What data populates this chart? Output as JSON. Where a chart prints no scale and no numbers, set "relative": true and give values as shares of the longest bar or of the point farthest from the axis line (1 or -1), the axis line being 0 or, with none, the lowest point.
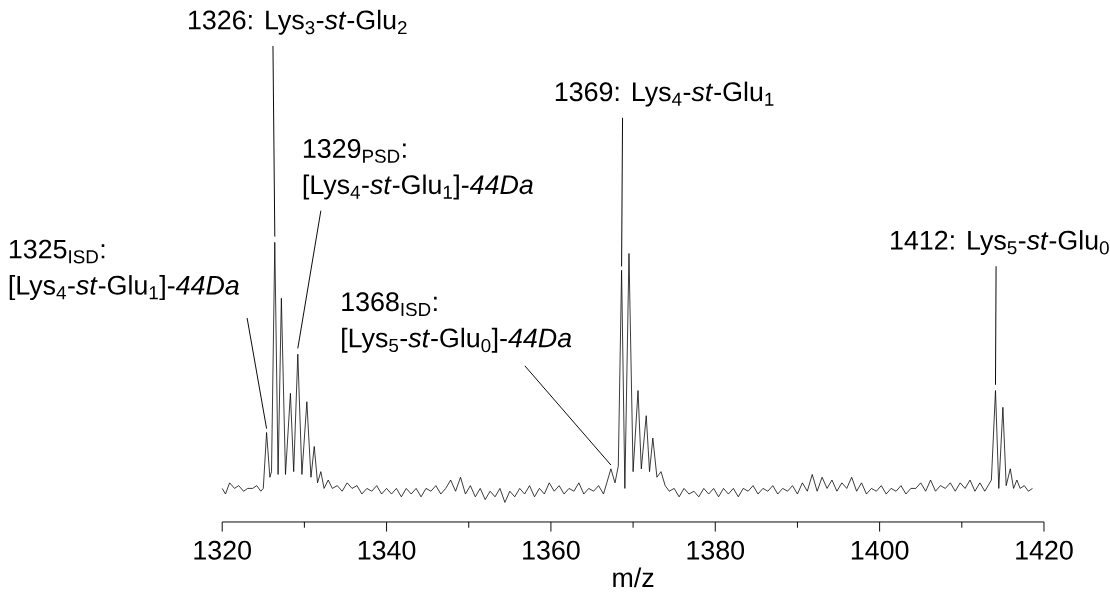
{
  "chart_data": {
    "type": "line",
    "relative": true,
    "tick_labels": "x",
    "xlabel": "m/z",
    "xlim": [
      1320,
      1420
    ],
    "xticks": [
      1320,
      1340,
      1360,
      1380,
      1400,
      1420
    ],
    "color": "#000000",
    "x": [
      1320.0,
      1320.4,
      1320.9,
      1321.5,
      1322.0,
      1322.6,
      1323.1,
      1323.7,
      1324.2,
      1324.7,
      1325.0,
      1325.4,
      1325.8,
      1326.0,
      1326.4,
      1326.8,
      1327.2,
      1327.7,
      1328.3,
      1328.7,
      1329.2,
      1329.7,
      1330.3,
      1330.8,
      1331.2,
      1331.6,
      1332.0,
      1332.4,
      1332.9,
      1333.4,
      1334.0,
      1334.6,
      1335.2,
      1335.8,
      1336.4,
      1337.0,
      1337.6,
      1338.2,
      1338.8,
      1339.4,
      1340.0,
      1340.6,
      1341.2,
      1341.8,
      1342.4,
      1343.0,
      1343.6,
      1344.2,
      1344.8,
      1345.4,
      1346.0,
      1346.6,
      1347.2,
      1347.8,
      1348.4,
      1349.0,
      1349.6,
      1350.2,
      1350.8,
      1351.4,
      1352.0,
      1352.6,
      1353.2,
      1353.8,
      1354.4,
      1355.0,
      1355.6,
      1356.2,
      1356.8,
      1357.4,
      1358.0,
      1358.6,
      1359.2,
      1359.8,
      1360.4,
      1361.0,
      1361.6,
      1362.2,
      1362.8,
      1363.4,
      1364.0,
      1364.6,
      1365.2,
      1365.8,
      1366.4,
      1366.8,
      1367.3,
      1367.8,
      1368.2,
      1368.6,
      1369.0,
      1369.5,
      1370.0,
      1370.6,
      1371.0,
      1371.6,
      1372.0,
      1372.4,
      1372.9,
      1373.4,
      1373.9,
      1374.4,
      1375.0,
      1375.6,
      1376.2,
      1376.8,
      1377.4,
      1378.0,
      1378.6,
      1379.2,
      1379.8,
      1380.4,
      1381.0,
      1381.6,
      1382.2,
      1382.8,
      1383.4,
      1384.0,
      1384.6,
      1385.2,
      1385.8,
      1386.4,
      1387.0,
      1387.6,
      1388.2,
      1388.8,
      1389.4,
      1390.0,
      1390.6,
      1391.2,
      1391.8,
      1392.4,
      1393.0,
      1393.6,
      1394.2,
      1394.8,
      1395.4,
      1396.0,
      1396.6,
      1397.2,
      1397.8,
      1398.4,
      1399.0,
      1399.6,
      1400.2,
      1400.8,
      1401.4,
      1402.0,
      1402.6,
      1403.2,
      1403.8,
      1404.4,
      1405.0,
      1405.6,
      1406.2,
      1406.8,
      1407.4,
      1408.0,
      1408.6,
      1409.2,
      1409.8,
      1410.4,
      1411.0,
      1411.6,
      1412.2,
      1412.8,
      1413.2,
      1413.6,
      1414.1,
      1414.5,
      1415.0,
      1415.4,
      1415.9,
      1416.3,
      1416.7,
      1417.1,
      1417.6,
      1418.1,
      1418.6
    ],
    "values": [
      0.12,
      0.1,
      0.14,
      0.12,
      0.13,
      0.11,
      0.12,
      0.12,
      0.13,
      0.11,
      0.12,
      0.32,
      0.16,
      0.18,
      1.0,
      0.17,
      0.8,
      0.17,
      0.46,
      0.18,
      0.6,
      0.17,
      0.43,
      0.16,
      0.27,
      0.14,
      0.18,
      0.12,
      0.15,
      0.12,
      0.13,
      0.11,
      0.14,
      0.12,
      0.13,
      0.1,
      0.12,
      0.11,
      0.13,
      0.1,
      0.12,
      0.1,
      0.12,
      0.09,
      0.12,
      0.1,
      0.12,
      0.09,
      0.12,
      0.11,
      0.13,
      0.1,
      0.12,
      0.15,
      0.11,
      0.16,
      0.1,
      0.13,
      0.09,
      0.12,
      0.08,
      0.11,
      0.09,
      0.12,
      0.07,
      0.11,
      0.09,
      0.12,
      0.1,
      0.13,
      0.09,
      0.12,
      0.1,
      0.14,
      0.11,
      0.13,
      0.1,
      0.12,
      0.11,
      0.14,
      0.1,
      0.12,
      0.11,
      0.13,
      0.1,
      0.14,
      0.19,
      0.14,
      0.2,
      0.9,
      0.12,
      0.96,
      0.18,
      0.47,
      0.19,
      0.38,
      0.18,
      0.3,
      0.16,
      0.18,
      0.13,
      0.11,
      0.12,
      0.09,
      0.12,
      0.1,
      0.11,
      0.09,
      0.12,
      0.1,
      0.12,
      0.09,
      0.12,
      0.1,
      0.12,
      0.09,
      0.12,
      0.11,
      0.13,
      0.1,
      0.12,
      0.11,
      0.13,
      0.1,
      0.12,
      0.11,
      0.13,
      0.1,
      0.14,
      0.11,
      0.17,
      0.11,
      0.16,
      0.12,
      0.15,
      0.11,
      0.14,
      0.12,
      0.16,
      0.11,
      0.14,
      0.1,
      0.12,
      0.11,
      0.13,
      0.1,
      0.12,
      0.11,
      0.13,
      0.1,
      0.12,
      0.12,
      0.14,
      0.11,
      0.15,
      0.11,
      0.13,
      0.12,
      0.14,
      0.11,
      0.14,
      0.12,
      0.15,
      0.11,
      0.14,
      0.11,
      0.13,
      0.15,
      0.47,
      0.12,
      0.41,
      0.13,
      0.19,
      0.12,
      0.15,
      0.12,
      0.13,
      0.11,
      0.12
    ],
    "annotations": [
      {
        "text": "1326: Lys$_{3}$-*st*-Glu$_{2}$",
        "x": 1326.4,
        "y": 1.0
      },
      "1329$_{PSD}$:",
      {
        "text": "[Lys$_{4}$-*st*-Glu$_{1}$]-*44Da*",
        "x": 1329.2,
        "y": 0.6
      },
      "1325$_{ISD}$:",
      {
        "text": "[Lys$_{4}$-*st*-Glu$_{1}$]-*44Da*",
        "x": 1325.4,
        "y": 0.32
      },
      "1368$_{ISD}$:",
      {
        "text": "[Lys$_{5}$-*st*-Glu$_{0}$]-*44Da*",
        "x": 1367.3,
        "y": 0.19
      },
      {
        "text": "1369: Lys$_{4}$-*st*-Glu$_{1}$",
        "x": 1368.6,
        "y": 0.9
      },
      {
        "text": "1412: Lys$_{5}$-*st*-Glu$_{0}$",
        "x": 1414.1,
        "y": 0.47
      }
    ]
  }
}
